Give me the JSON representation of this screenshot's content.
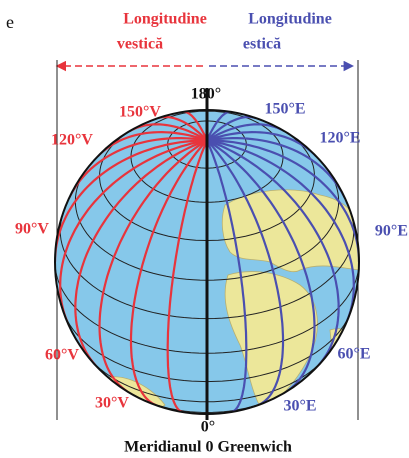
{
  "corner_text": "e",
  "west_heading": {
    "line1": "Longitudine",
    "line2": "vestică"
  },
  "east_heading": {
    "line1": "Longitudine",
    "line2": "estică"
  },
  "top_meridian": "180°",
  "west_labels": [
    "150°V",
    "120°V",
    "90°V",
    "60°V",
    "30°V"
  ],
  "east_labels": [
    "150°E",
    "120°E",
    "90°E",
    "60°E",
    "30°E"
  ],
  "bottom_meridian": "0°",
  "caption": "Meridianul 0 Greenwich"
}
